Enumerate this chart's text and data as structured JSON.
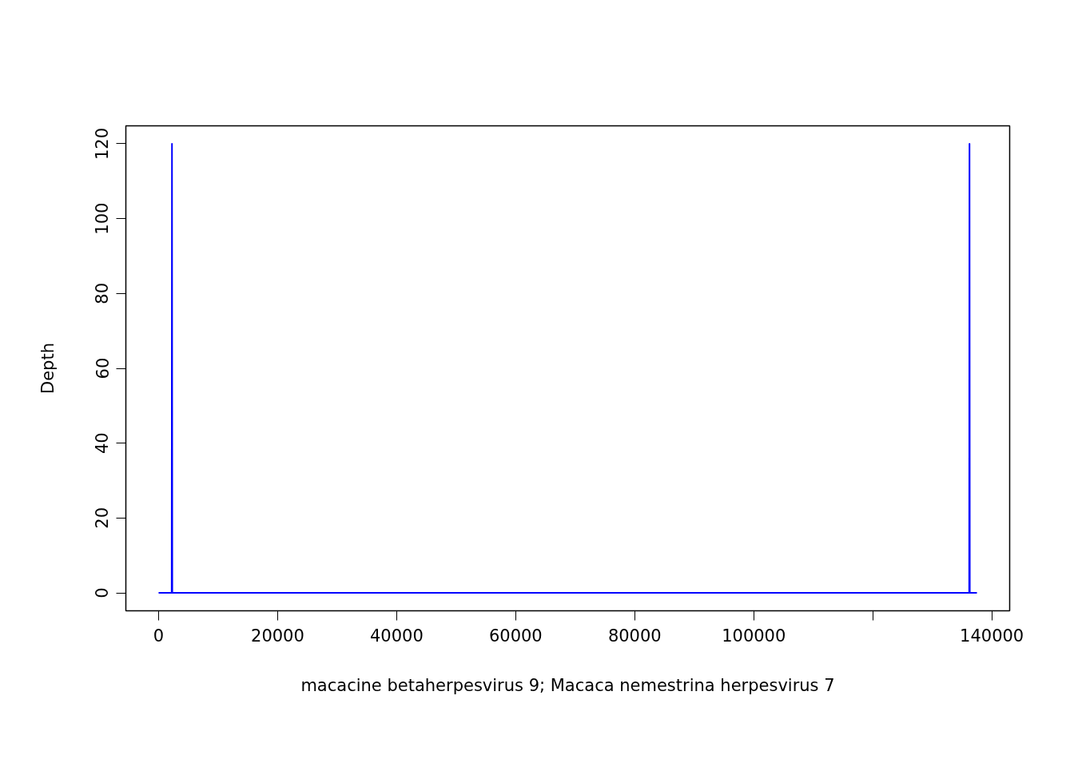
{
  "chart_data": {
    "type": "line",
    "xlabel": "macacine betaherpesvirus 9; Macaca nemestrina herpesvirus 7",
    "ylabel": "Depth",
    "series": [
      {
        "color": "#0000ff",
        "x": [
          0,
          2200,
          2250,
          2300,
          136200,
          136250,
          136300,
          137500
        ],
        "values": [
          0,
          0,
          120,
          0,
          0,
          120,
          0,
          0
        ]
      }
    ],
    "xlim": [
      -5500,
      143000
    ],
    "ylim": [
      -4.8,
      124.8
    ],
    "xticks": [
      0,
      20000,
      40000,
      60000,
      80000,
      100000,
      {
        "value": 120000,
        "label": null
      },
      140000
    ],
    "yticks": [
      0,
      20,
      40,
      60,
      80,
      100,
      120
    ],
    "grid": false,
    "line_style": "solid",
    "marker": "none"
  }
}
